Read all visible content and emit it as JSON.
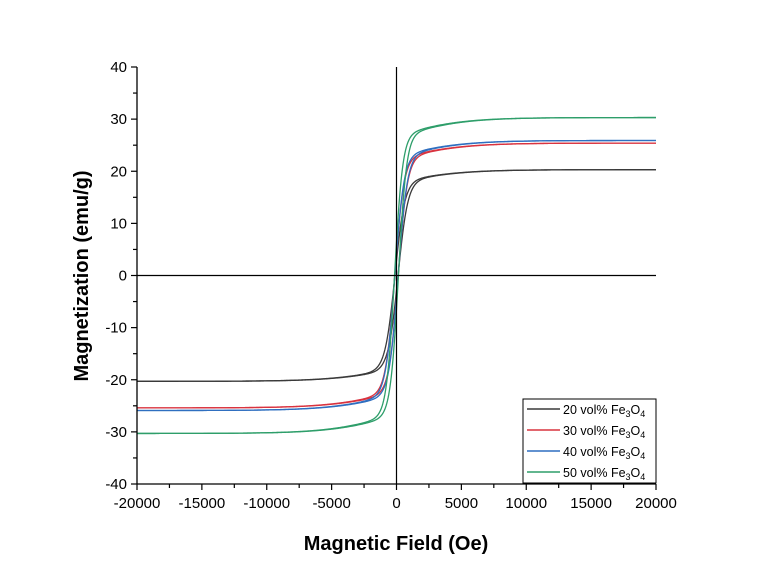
{
  "chart_data": {
    "type": "line",
    "title": "",
    "xlabel": "Magnetic Field (Oe)",
    "ylabel": "Magnetization (emu/g)",
    "xlim": [
      -20000,
      20000
    ],
    "ylim": [
      -40,
      40
    ],
    "xticks": [
      -20000,
      -15000,
      -10000,
      -5000,
      0,
      5000,
      10000,
      15000,
      20000
    ],
    "yticks": [
      -40,
      -30,
      -20,
      -10,
      0,
      10,
      20,
      30,
      40
    ],
    "grid": false,
    "legend_position": "bottom-right",
    "curve_model": "hysteresis loop; branch M(H) = Ms * (0.88*tanh((H -/+ Hc)/w) + 0.12*tanh((H -/+ Hc)/5000))",
    "series": [
      {
        "name": "20 vol% Fe",
        "sub1": "3",
        "mid": "O",
        "sub2": "4",
        "color": "#3a3a3a",
        "saturation_emu_g": 20.3,
        "coercivity_oe": 120,
        "width_oe": 750
      },
      {
        "name": "30 vol% Fe",
        "sub1": "3",
        "mid": "O",
        "sub2": "4",
        "color": "#d9333f",
        "saturation_emu_g": 25.4,
        "coercivity_oe": 130,
        "width_oe": 700
      },
      {
        "name": "40 vol% Fe",
        "sub1": "3",
        "mid": "O",
        "sub2": "4",
        "color": "#2f6fc0",
        "saturation_emu_g": 25.9,
        "coercivity_oe": 130,
        "width_oe": 700
      },
      {
        "name": "50 vol% Fe",
        "sub1": "3",
        "mid": "O",
        "sub2": "4",
        "color": "#2e9e6a",
        "saturation_emu_g": 30.3,
        "coercivity_oe": 150,
        "width_oe": 620
      }
    ]
  }
}
